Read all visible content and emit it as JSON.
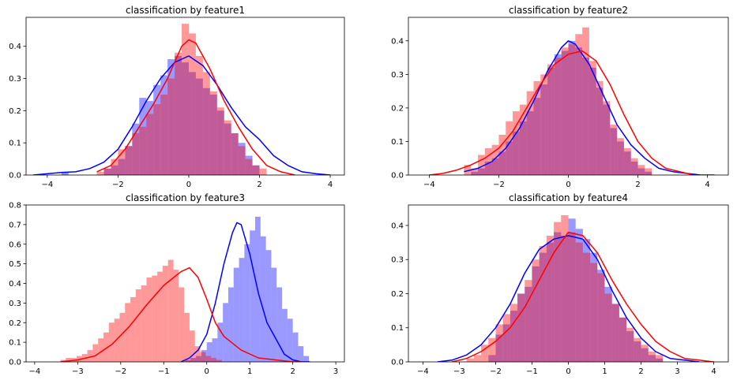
{
  "chart_data": [
    {
      "type": "histogram-kde",
      "title": "classification by feature1",
      "xlim": [
        -4.6,
        4.4
      ],
      "ylim": [
        0,
        0.49
      ],
      "xticks": [
        -4,
        -2,
        0,
        2,
        4
      ],
      "yticks": [
        0.0,
        0.1,
        0.2,
        0.3,
        0.4
      ],
      "ytick_labels": [
        "0.0",
        "0.1",
        "0.2",
        "0.3",
        "0.4"
      ],
      "series": [
        {
          "color": "#0000ff",
          "hist": {
            "start": -3.6,
            "width": 0.2,
            "values": [
              0.01,
              0.0,
              0.0,
              0.0,
              0.0,
              0.0,
              0.02,
              0.03,
              0.05,
              0.09,
              0.16,
              0.24,
              0.23,
              0.28,
              0.31,
              0.36,
              0.37,
              0.35,
              0.32,
              0.3,
              0.27,
              0.25,
              0.2,
              0.16,
              0.13,
              0.1,
              0.06,
              0.03
            ]
          },
          "kde": {
            "x": [
              -4.4,
              -4.0,
              -3.6,
              -3.2,
              -2.8,
              -2.4,
              -2.0,
              -1.6,
              -1.2,
              -0.8,
              -0.4,
              0.0,
              0.4,
              0.8,
              1.2,
              1.6,
              2.0,
              2.4,
              2.8,
              3.2,
              3.6,
              4.0
            ],
            "y": [
              0.0,
              0.004,
              0.008,
              0.01,
              0.02,
              0.04,
              0.08,
              0.15,
              0.23,
              0.3,
              0.35,
              0.37,
              0.34,
              0.28,
              0.21,
              0.15,
              0.11,
              0.06,
              0.03,
              0.01,
              0.004,
              0.0
            ]
          }
        },
        {
          "color": "#ff0000",
          "hist": {
            "start": -2.6,
            "width": 0.2,
            "values": [
              0.01,
              0.02,
              0.05,
              0.08,
              0.09,
              0.13,
              0.15,
              0.19,
              0.22,
              0.25,
              0.3,
              0.38,
              0.47,
              0.44,
              0.37,
              0.32,
              0.26,
              0.21,
              0.17,
              0.13,
              0.09,
              0.05,
              0.03,
              0.02
            ]
          },
          "kde": {
            "x": [
              -2.6,
              -2.2,
              -1.8,
              -1.4,
              -1.0,
              -0.6,
              -0.2,
              0.0,
              0.2,
              0.6,
              1.0,
              1.4,
              1.8,
              2.2,
              2.6,
              3.0
            ],
            "y": [
              0.01,
              0.03,
              0.08,
              0.15,
              0.22,
              0.3,
              0.4,
              0.42,
              0.41,
              0.33,
              0.23,
              0.15,
              0.08,
              0.03,
              0.01,
              0.0
            ]
          }
        }
      ]
    },
    {
      "type": "histogram-kde",
      "title": "classification by feature2",
      "xlim": [
        -4.6,
        4.6
      ],
      "ylim": [
        0,
        0.47
      ],
      "xticks": [
        -4,
        -2,
        0,
        2,
        4
      ],
      "yticks": [
        0.0,
        0.1,
        0.2,
        0.3,
        0.4
      ],
      "ytick_labels": [
        "0.0",
        "0.1",
        "0.2",
        "0.3",
        "0.4"
      ],
      "series": [
        {
          "color": "#0000ff",
          "hist": {
            "start": -2.8,
            "width": 0.2,
            "values": [
              0.01,
              0.02,
              0.04,
              0.05,
              0.07,
              0.1,
              0.13,
              0.16,
              0.19,
              0.23,
              0.27,
              0.32,
              0.36,
              0.37,
              0.4,
              0.38,
              0.35,
              0.32,
              0.26,
              0.21,
              0.14,
              0.1,
              0.07,
              0.04,
              0.02,
              0.01
            ]
          },
          "kde": {
            "x": [
              -3.0,
              -2.6,
              -2.2,
              -1.8,
              -1.4,
              -1.0,
              -0.6,
              -0.2,
              0.0,
              0.2,
              0.6,
              1.0,
              1.4,
              1.8,
              2.2,
              2.6,
              3.0,
              3.4,
              3.8,
              4.2
            ],
            "y": [
              0.01,
              0.02,
              0.04,
              0.08,
              0.14,
              0.22,
              0.31,
              0.38,
              0.4,
              0.39,
              0.33,
              0.24,
              0.15,
              0.09,
              0.05,
              0.02,
              0.01,
              0.005,
              0.0,
              0.0
            ]
          }
        },
        {
          "color": "#ff0000",
          "hist": {
            "start": -3.0,
            "width": 0.2,
            "values": [
              0.03,
              0.02,
              0.06,
              0.08,
              0.09,
              0.12,
              0.16,
              0.19,
              0.21,
              0.25,
              0.28,
              0.3,
              0.33,
              0.35,
              0.38,
              0.39,
              0.42,
              0.44,
              0.34,
              0.28,
              0.22,
              0.15,
              0.11,
              0.08,
              0.05,
              0.03,
              0.02
            ]
          },
          "kde": {
            "x": [
              -4.0,
              -3.6,
              -3.2,
              -2.8,
              -2.4,
              -2.0,
              -1.6,
              -1.2,
              -0.8,
              -0.4,
              0.0,
              0.4,
              0.8,
              1.2,
              1.6,
              2.0,
              2.4,
              2.8,
              3.2,
              3.6
            ],
            "y": [
              0.0,
              0.005,
              0.015,
              0.03,
              0.05,
              0.08,
              0.13,
              0.2,
              0.27,
              0.33,
              0.36,
              0.37,
              0.34,
              0.27,
              0.18,
              0.1,
              0.05,
              0.02,
              0.01,
              0.0
            ]
          }
        }
      ]
    },
    {
      "type": "histogram-kde",
      "title": "classification by feature3",
      "xlim": [
        -4.2,
        3.2
      ],
      "ylim": [
        0,
        0.8
      ],
      "xticks": [
        -4,
        -3,
        -2,
        -1,
        0,
        1,
        2,
        3
      ],
      "yticks": [
        0.0,
        0.1,
        0.2,
        0.3,
        0.4,
        0.5,
        0.6,
        0.7,
        0.8
      ],
      "ytick_labels": [
        "0.0",
        "0.1",
        "0.2",
        "0.3",
        "0.4",
        "0.5",
        "0.6",
        "0.7",
        "0.8"
      ],
      "series": [
        {
          "color": "#0000ff",
          "hist": {
            "start": -0.5,
            "width": 0.125,
            "values": [
              0.01,
              0.02,
              0.03,
              0.06,
              0.1,
              0.12,
              0.2,
              0.3,
              0.38,
              0.48,
              0.53,
              0.6,
              0.67,
              0.74,
              0.64,
              0.57,
              0.48,
              0.38,
              0.27,
              0.22,
              0.15,
              0.08,
              0.03
            ]
          },
          "kde": {
            "x": [
              -0.6,
              -0.4,
              -0.2,
              0.0,
              0.2,
              0.4,
              0.6,
              0.7,
              0.8,
              1.0,
              1.2,
              1.4,
              1.6,
              1.8,
              2.0,
              2.2,
              2.4
            ],
            "y": [
              0.0,
              0.02,
              0.06,
              0.14,
              0.3,
              0.5,
              0.66,
              0.71,
              0.7,
              0.55,
              0.35,
              0.2,
              0.12,
              0.04,
              0.01,
              0.0,
              0.0
            ]
          }
        },
        {
          "color": "#ff0000",
          "hist": {
            "start": -3.4,
            "width": 0.125,
            "values": [
              0.01,
              0.02,
              0.02,
              0.03,
              0.04,
              0.06,
              0.09,
              0.12,
              0.15,
              0.2,
              0.22,
              0.25,
              0.3,
              0.33,
              0.37,
              0.39,
              0.43,
              0.44,
              0.46,
              0.49,
              0.52,
              0.47,
              0.38,
              0.25,
              0.16,
              0.08,
              0.05,
              0.03,
              0.02,
              0.01
            ]
          },
          "kde": {
            "x": [
              -3.4,
              -3.0,
              -2.6,
              -2.2,
              -1.8,
              -1.4,
              -1.0,
              -0.6,
              -0.4,
              -0.2,
              0.0,
              0.2,
              0.4,
              0.8,
              1.2,
              1.6,
              2.0,
              2.2
            ],
            "y": [
              0.0,
              0.01,
              0.03,
              0.09,
              0.18,
              0.29,
              0.39,
              0.46,
              0.48,
              0.43,
              0.32,
              0.2,
              0.13,
              0.06,
              0.02,
              0.01,
              0.0,
              0.0
            ]
          }
        }
      ]
    },
    {
      "type": "histogram-kde",
      "title": "classification by feature4",
      "xlim": [
        -4.4,
        4.4
      ],
      "ylim": [
        0,
        0.46
      ],
      "xticks": [
        -4,
        -3,
        -2,
        -1,
        0,
        1,
        2,
        3,
        4
      ],
      "yticks": [
        0.0,
        0.1,
        0.2,
        0.3,
        0.4
      ],
      "ytick_labels": [
        "0.0",
        "0.1",
        "0.2",
        "0.3",
        "0.4"
      ],
      "series": [
        {
          "color": "#0000ff",
          "hist": {
            "start": -2.2,
            "width": 0.2,
            "values": [
              0.02,
              0.08,
              0.11,
              0.15,
              0.2,
              0.22,
              0.28,
              0.32,
              0.35,
              0.38,
              0.37,
              0.42,
              0.39,
              0.36,
              0.32,
              0.27,
              0.22,
              0.17,
              0.13,
              0.09,
              0.06,
              0.04,
              0.02,
              0.01
            ]
          },
          "kde": {
            "x": [
              -3.6,
              -3.2,
              -2.8,
              -2.4,
              -2.0,
              -1.6,
              -1.2,
              -0.8,
              -0.4,
              0.0,
              0.4,
              0.8,
              1.2,
              1.6,
              2.0,
              2.4,
              2.8,
              3.2,
              3.6
            ],
            "y": [
              0.0,
              0.005,
              0.02,
              0.05,
              0.1,
              0.17,
              0.26,
              0.33,
              0.36,
              0.37,
              0.36,
              0.3,
              0.21,
              0.13,
              0.07,
              0.03,
              0.01,
              0.005,
              0.0
            ]
          }
        },
        {
          "color": "#ff0000",
          "hist": {
            "start": -2.8,
            "width": 0.2,
            "values": [
              0.01,
              0.02,
              0.05,
              0.07,
              0.11,
              0.14,
              0.17,
              0.2,
              0.24,
              0.3,
              0.34,
              0.37,
              0.41,
              0.43,
              0.38,
              0.35,
              0.32,
              0.29,
              0.26,
              0.2,
              0.17,
              0.13,
              0.1,
              0.07,
              0.05,
              0.03,
              0.02
            ]
          },
          "kde": {
            "x": [
              -3.2,
              -2.8,
              -2.4,
              -2.0,
              -1.6,
              -1.2,
              -0.8,
              -0.4,
              0.0,
              0.4,
              0.8,
              1.2,
              1.6,
              2.0,
              2.4,
              2.8,
              3.2,
              3.6,
              4.0
            ],
            "y": [
              0.0,
              0.01,
              0.03,
              0.06,
              0.1,
              0.16,
              0.24,
              0.32,
              0.38,
              0.37,
              0.32,
              0.24,
              0.17,
              0.11,
              0.06,
              0.03,
              0.01,
              0.005,
              0.0
            ]
          }
        }
      ]
    }
  ]
}
